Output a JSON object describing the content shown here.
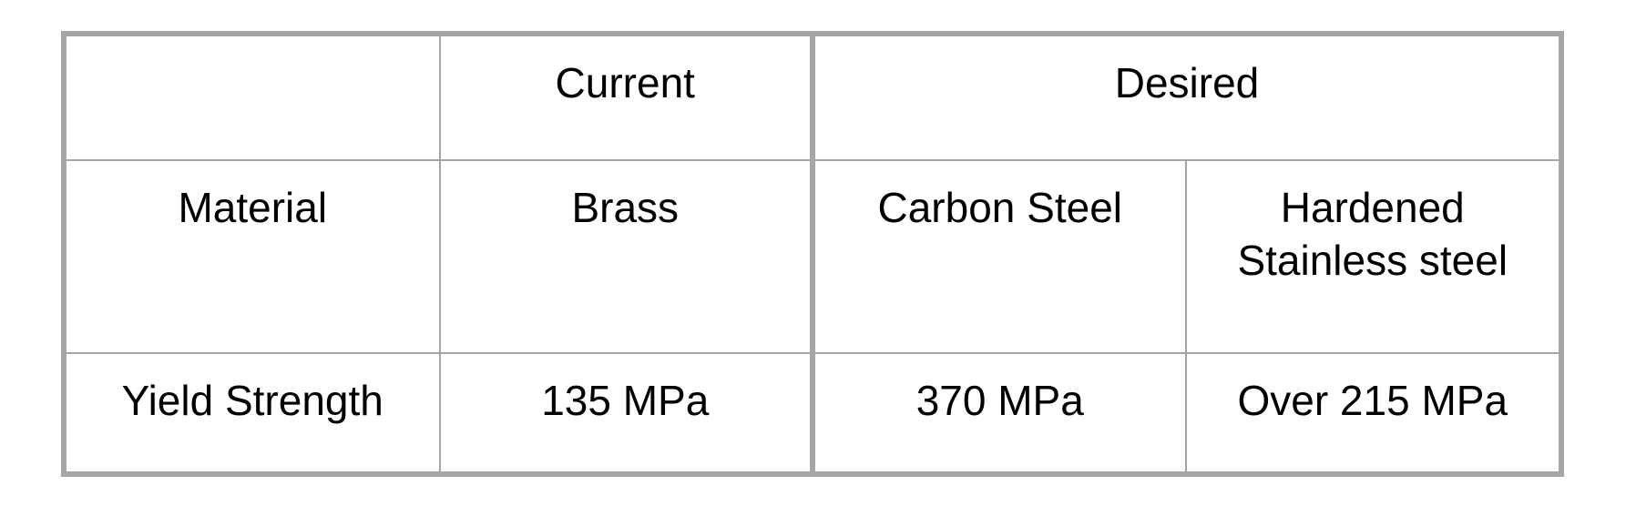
{
  "table": {
    "header": {
      "empty": "",
      "current": "Current",
      "desired": "Desired"
    },
    "material_row": {
      "label": "Material",
      "current": "Brass",
      "desired_1": "Carbon Steel",
      "desired_2_line1": "Hardened",
      "desired_2_line2": "Stainless steel"
    },
    "yield_row": {
      "label": "Yield Strength",
      "current": "135 MPa",
      "desired_1": "370 MPa",
      "desired_2": "Over 215 MPa"
    }
  },
  "colors": {
    "border": "#a6a6a6",
    "text": "#000000",
    "background": "#ffffff"
  }
}
